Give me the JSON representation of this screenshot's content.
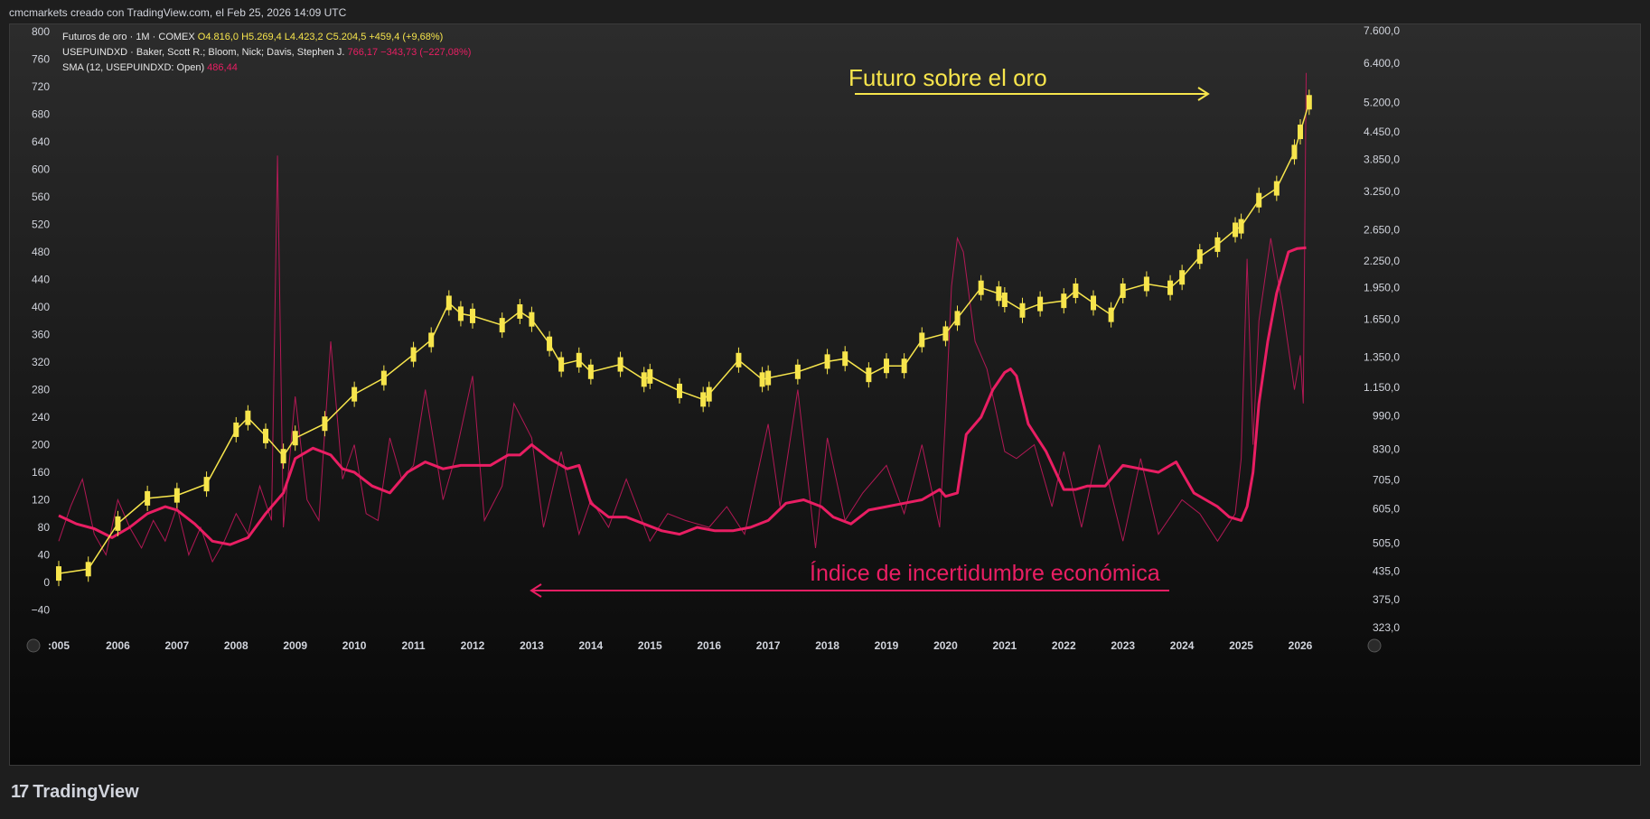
{
  "header": {
    "text": "cmcmarkets creado con TradingView.com, el Feb 25, 2026 14:09 UTC"
  },
  "legend": {
    "line1_name": "Futuros de oro · 1M · COMEX",
    "line1_ohlc": "O4.816,0 H5.269,4 L4.423,2 C5.204,5 +459,4 (+9,68%)",
    "line2_name": "USEPUINDXD · Baker, Scott R.; Bloom, Nick; Davis, Stephen J.",
    "line2_vals": "766,17 −343,73 (−227,08%)",
    "line3_name": "SMA (12, USEPUINDXD: Open)",
    "line3_vals": "486,44"
  },
  "brand": {
    "logo": "17",
    "name": "TradingView"
  },
  "colors": {
    "gold": "#f7e54c",
    "epu": "#e91e63",
    "epu_thin": "#c2185b",
    "grid_text": "#d1d4dc"
  },
  "chart_data": {
    "type": "line",
    "annotations": [
      "Futuro sobre el oro",
      "Índice de incertidumbre económica"
    ],
    "x_ticks": [
      ":005",
      "2006",
      "2007",
      "2008",
      "2009",
      "2010",
      "2011",
      "2012",
      "2013",
      "2014",
      "2015",
      "2016",
      "2017",
      "2018",
      "2019",
      "2020",
      "2021",
      "2022",
      "2023",
      "2024",
      "2025",
      "2026"
    ],
    "left_axis_ticks": [
      "800",
      "760",
      "720",
      "680",
      "640",
      "600",
      "560",
      "520",
      "480",
      "440",
      "400",
      "360",
      "320",
      "280",
      "240",
      "200",
      "160",
      "120",
      "80",
      "40",
      "0",
      "−40"
    ],
    "left_axis_values": [
      800,
      760,
      720,
      680,
      640,
      600,
      560,
      520,
      480,
      440,
      400,
      360,
      320,
      280,
      240,
      200,
      160,
      120,
      80,
      40,
      0,
      -40
    ],
    "right_axis_ticks": [
      "7.600,0",
      "6.400,0",
      "5.200,0",
      "4.450,0",
      "3.850,0",
      "3.250,0",
      "2.650,0",
      "2.250,0",
      "1.950,0",
      "1.650,0",
      "1.350,0",
      "1.150,0",
      "990,0",
      "830,0",
      "705,0",
      "605,0",
      "505,0",
      "435,0",
      "375,0",
      "323,0"
    ],
    "right_axis_values": [
      7600,
      6400,
      5200,
      4450,
      3850,
      3250,
      2650,
      2250,
      1950,
      1650,
      1350,
      1150,
      990,
      830,
      705,
      605,
      505,
      435,
      375,
      323
    ],
    "right_axis_scale": "log",
    "series": [
      {
        "name": "Futuros de oro · 1M · COMEX",
        "axis": "right",
        "x": [
          2005.0,
          2005.5,
          2006.0,
          2006.5,
          2007.0,
          2007.5,
          2008.0,
          2008.2,
          2008.5,
          2008.8,
          2009.0,
          2009.5,
          2010.0,
          2010.5,
          2011.0,
          2011.3,
          2011.6,
          2011.8,
          2012.0,
          2012.5,
          2012.8,
          2013.0,
          2013.3,
          2013.5,
          2013.8,
          2014.0,
          2014.5,
          2014.9,
          2015.0,
          2015.5,
          2015.9,
          2016.0,
          2016.5,
          2016.9,
          2017.0,
          2017.5,
          2018.0,
          2018.3,
          2018.7,
          2019.0,
          2019.3,
          2019.6,
          2020.0,
          2020.2,
          2020.6,
          2020.9,
          2021.0,
          2021.3,
          2021.6,
          2022.0,
          2022.2,
          2022.5,
          2022.8,
          2023.0,
          2023.4,
          2023.8,
          2024.0,
          2024.3,
          2024.6,
          2024.9,
          2025.0,
          2025.3,
          2025.6,
          2025.9,
          2026.0,
          2026.15
        ],
        "values": [
          430,
          440,
          560,
          640,
          650,
          690,
          920,
          980,
          890,
          800,
          880,
          950,
          1110,
          1210,
          1370,
          1480,
          1800,
          1700,
          1680,
          1600,
          1720,
          1650,
          1450,
          1300,
          1330,
          1250,
          1300,
          1200,
          1220,
          1130,
          1080,
          1110,
          1330,
          1200,
          1210,
          1250,
          1320,
          1340,
          1230,
          1290,
          1290,
          1480,
          1530,
          1660,
          1950,
          1890,
          1830,
          1730,
          1790,
          1820,
          1920,
          1800,
          1690,
          1920,
          1990,
          1950,
          2060,
          2300,
          2450,
          2650,
          2700,
          3100,
          3300,
          4000,
          4450,
          5204
        ]
      },
      {
        "name": "USEPUINDXD · Baker, Scott R.; Bloom, Nick; Davis, Stephen J.",
        "axis": "left",
        "x": [
          2005.0,
          2005.2,
          2005.4,
          2005.6,
          2005.8,
          2006.0,
          2006.2,
          2006.4,
          2006.6,
          2006.8,
          2007.0,
          2007.2,
          2007.4,
          2007.6,
          2007.8,
          2008.0,
          2008.2,
          2008.4,
          2008.6,
          2008.7,
          2008.8,
          2009.0,
          2009.2,
          2009.4,
          2009.6,
          2009.8,
          2010.0,
          2010.2,
          2010.4,
          2010.6,
          2010.8,
          2011.0,
          2011.2,
          2011.5,
          2011.7,
          2012.0,
          2012.2,
          2012.5,
          2012.7,
          2013.0,
          2013.2,
          2013.5,
          2013.8,
          2014.0,
          2014.3,
          2014.6,
          2015.0,
          2015.3,
          2015.6,
          2016.0,
          2016.3,
          2016.6,
          2017.0,
          2017.2,
          2017.5,
          2017.8,
          2018.0,
          2018.3,
          2018.6,
          2019.0,
          2019.3,
          2019.6,
          2019.9,
          2020.0,
          2020.1,
          2020.2,
          2020.3,
          2020.5,
          2020.7,
          2021.0,
          2021.2,
          2021.5,
          2021.8,
          2022.0,
          2022.3,
          2022.6,
          2023.0,
          2023.3,
          2023.6,
          2024.0,
          2024.3,
          2024.6,
          2024.9,
          2025.0,
          2025.1,
          2025.2,
          2025.3,
          2025.5,
          2025.7,
          2025.9,
          2026.0,
          2026.05,
          2026.1
        ],
        "values": [
          60,
          110,
          150,
          70,
          40,
          120,
          80,
          50,
          90,
          60,
          110,
          40,
          80,
          30,
          60,
          100,
          70,
          140,
          90,
          620,
          80,
          270,
          120,
          90,
          350,
          150,
          200,
          100,
          90,
          210,
          150,
          170,
          280,
          120,
          180,
          300,
          90,
          140,
          260,
          210,
          80,
          190,
          70,
          120,
          80,
          150,
          60,
          100,
          90,
          80,
          110,
          70,
          230,
          110,
          280,
          50,
          210,
          90,
          130,
          170,
          100,
          200,
          80,
          240,
          430,
          500,
          480,
          350,
          310,
          190,
          180,
          200,
          110,
          190,
          80,
          200,
          60,
          180,
          70,
          120,
          100,
          60,
          100,
          180,
          470,
          200,
          380,
          500,
          400,
          280,
          330,
          260,
          740
        ]
      },
      {
        "name": "SMA (12, USEPUINDXD: Open)",
        "axis": "left",
        "x": [
          2005.0,
          2005.3,
          2005.6,
          2005.9,
          2006.2,
          2006.5,
          2006.8,
          2007.0,
          2007.3,
          2007.6,
          2007.9,
          2008.2,
          2008.5,
          2008.8,
          2009.0,
          2009.3,
          2009.6,
          2009.8,
          2010.0,
          2010.3,
          2010.6,
          2010.9,
          2011.2,
          2011.5,
          2011.8,
          2012.0,
          2012.3,
          2012.6,
          2012.8,
          2013.0,
          2013.3,
          2013.6,
          2013.8,
          2014.0,
          2014.3,
          2014.6,
          2014.9,
          2015.2,
          2015.5,
          2015.8,
          2016.1,
          2016.4,
          2016.7,
          2017.0,
          2017.3,
          2017.6,
          2017.9,
          2018.1,
          2018.4,
          2018.7,
          2019.0,
          2019.3,
          2019.6,
          2019.9,
          2020.0,
          2020.2,
          2020.35,
          2020.6,
          2020.8,
          2021.0,
          2021.1,
          2021.2,
          2021.4,
          2021.7,
          2022.0,
          2022.2,
          2022.4,
          2022.7,
          2023.0,
          2023.3,
          2023.6,
          2023.9,
          2024.0,
          2024.2,
          2024.4,
          2024.6,
          2024.8,
          2025.0,
          2025.1,
          2025.2,
          2025.3,
          2025.45,
          2025.6,
          2025.8,
          2025.95,
          2026.1
        ],
        "values": [
          97,
          85,
          78,
          65,
          80,
          100,
          110,
          105,
          85,
          60,
          55,
          65,
          100,
          130,
          180,
          195,
          185,
          165,
          160,
          140,
          130,
          160,
          175,
          165,
          170,
          170,
          170,
          185,
          185,
          200,
          180,
          165,
          170,
          115,
          95,
          95,
          85,
          75,
          70,
          80,
          75,
          75,
          80,
          90,
          115,
          120,
          110,
          95,
          85,
          105,
          110,
          115,
          120,
          135,
          125,
          130,
          215,
          240,
          280,
          305,
          310,
          300,
          230,
          190,
          135,
          135,
          140,
          140,
          170,
          165,
          160,
          175,
          160,
          130,
          120,
          110,
          95,
          90,
          110,
          160,
          260,
          350,
          420,
          480,
          485,
          486
        ]
      }
    ]
  }
}
